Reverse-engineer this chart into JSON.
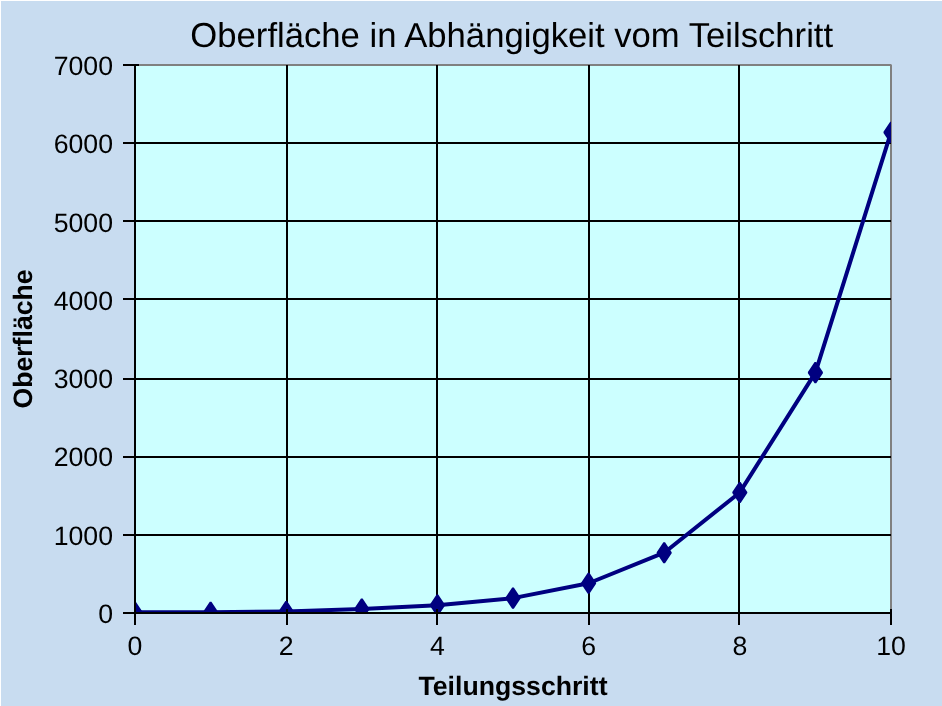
{
  "chart_data": {
    "type": "line",
    "title": "Oberfläche in Abhängigkeit vom Teilschritt",
    "xlabel": "Teilungsschritt",
    "ylabel": "Oberfläche",
    "x": [
      0,
      1,
      2,
      3,
      4,
      5,
      6,
      7,
      8,
      9,
      10
    ],
    "series": [
      {
        "color": "#000080",
        "values": [
          10,
          10,
          20,
          50,
          100,
          190,
          380,
          770,
          1540,
          3070,
          6140
        ]
      }
    ],
    "xlim": [
      0,
      10
    ],
    "xticks": [
      0,
      2,
      4,
      6,
      8,
      10
    ],
    "ylim": [
      0,
      7000
    ],
    "yticks": [
      0,
      1000,
      2000,
      3000,
      4000,
      5000,
      6000,
      7000
    ],
    "grid": true,
    "marker": "diamond",
    "line_style": "solid"
  }
}
